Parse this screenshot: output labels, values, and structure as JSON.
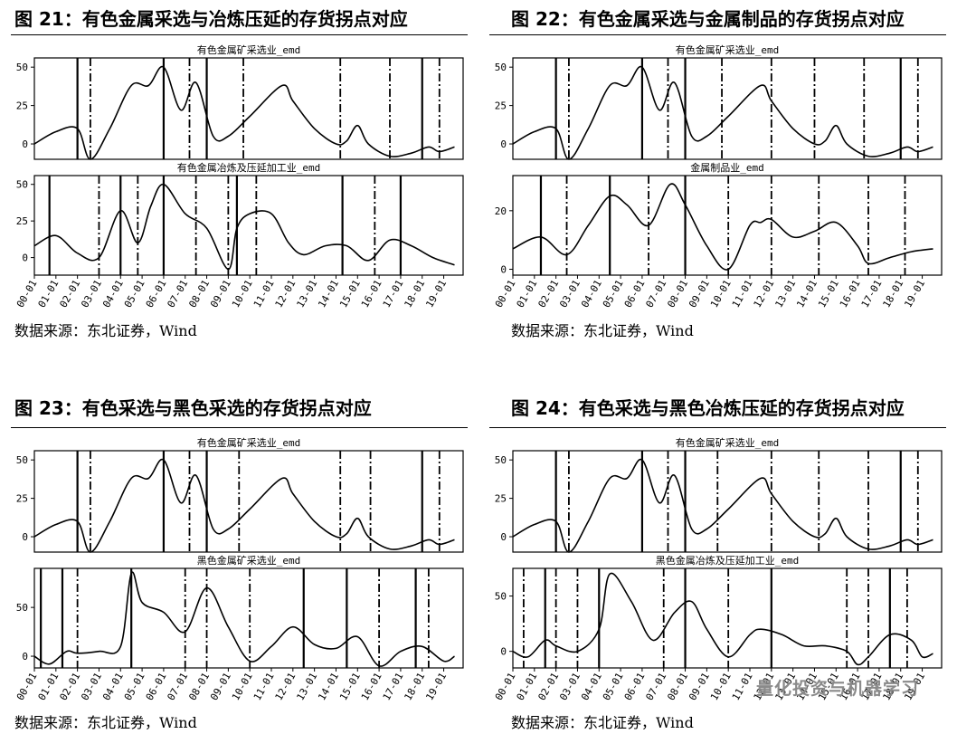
{
  "figures": [
    {
      "title": "图 21：有色金属采选与冶炼压延的存货拐点对应",
      "source": "数据来源：东北证券，Wind",
      "chart_data": [
        {
          "type": "line",
          "title": "有色金属矿采选业_emd",
          "ylim": [
            -10,
            56
          ],
          "yticks": [
            0,
            25,
            50
          ],
          "x": [
            2000.0,
            2001.0,
            2002.0,
            2002.6,
            2003.5,
            2004.5,
            2005.3,
            2006.0,
            2006.8,
            2007.5,
            2008.3,
            2009.0,
            2010.0,
            2011.5,
            2012.0,
            2013.0,
            2014.0,
            2014.5,
            2015.0,
            2015.5,
            2016.5,
            2017.5,
            2018.3,
            2018.8,
            2019.5
          ],
          "y": [
            0,
            8,
            10,
            -10,
            10,
            38,
            38,
            50,
            22,
            40,
            5,
            5,
            18,
            38,
            28,
            10,
            0,
            2,
            12,
            0,
            -8,
            -6,
            -2,
            -5,
            -2
          ],
          "events": [
            {
              "x": 2002.0,
              "style": "solid"
            },
            {
              "x": 2002.6,
              "style": "dashdot"
            },
            {
              "x": 2006.0,
              "style": "solid"
            },
            {
              "x": 2007.2,
              "style": "dashdot"
            },
            {
              "x": 2008.0,
              "style": "solid"
            },
            {
              "x": 2009.7,
              "style": "dashdot"
            },
            {
              "x": 2014.2,
              "style": "dashdot"
            },
            {
              "x": 2016.5,
              "style": "dashdot"
            },
            {
              "x": 2018.0,
              "style": "solid"
            },
            {
              "x": 2018.8,
              "style": "dashdot"
            }
          ]
        },
        {
          "type": "line",
          "title": "有色金属冶炼及压延加工业_emd",
          "ylim": [
            -12,
            56
          ],
          "yticks": [
            0,
            25,
            50
          ],
          "x": [
            2000.0,
            2001.0,
            2002.0,
            2003.0,
            2004.0,
            2004.8,
            2005.4,
            2006.0,
            2007.0,
            2008.0,
            2009.0,
            2009.4,
            2010.0,
            2011.0,
            2011.8,
            2012.5,
            2013.5,
            2014.5,
            2015.5,
            2016.5,
            2017.5,
            2018.5,
            2019.5
          ],
          "y": [
            8,
            15,
            3,
            0,
            32,
            10,
            35,
            50,
            30,
            20,
            -8,
            20,
            30,
            30,
            10,
            2,
            8,
            8,
            -2,
            12,
            8,
            0,
            -5
          ],
          "events": [
            {
              "x": 2000.7,
              "style": "solid"
            },
            {
              "x": 2003.0,
              "style": "dashdot"
            },
            {
              "x": 2004.0,
              "style": "solid"
            },
            {
              "x": 2004.8,
              "style": "dashdot"
            },
            {
              "x": 2006.0,
              "style": "solid"
            },
            {
              "x": 2007.5,
              "style": "dashdot"
            },
            {
              "x": 2009.0,
              "style": "dashdot"
            },
            {
              "x": 2009.4,
              "style": "solid"
            },
            {
              "x": 2010.3,
              "style": "dashdot"
            },
            {
              "x": 2014.3,
              "style": "solid"
            },
            {
              "x": 2015.8,
              "style": "dashdot"
            },
            {
              "x": 2017.0,
              "style": "solid"
            }
          ]
        }
      ],
      "xticks": [
        "00-01",
        "01-01",
        "02-01",
        "03-01",
        "04-01",
        "05-01",
        "06-01",
        "07-01",
        "08-01",
        "09-01",
        "10-01",
        "11-01",
        "12-01",
        "13-01",
        "14-01",
        "15-01",
        "16-01",
        "17-01",
        "18-01",
        "19-01"
      ]
    },
    {
      "title": "图 22：有色金属采选与金属制品的存货拐点对应",
      "source": "数据来源：东北证券，Wind",
      "chart_data": [
        {
          "type": "line",
          "title": "有色金属矿采选业_emd",
          "ylim": [
            -10,
            56
          ],
          "yticks": [
            0,
            25,
            50
          ],
          "x": [
            2000.0,
            2001.0,
            2002.0,
            2002.6,
            2003.5,
            2004.5,
            2005.3,
            2006.0,
            2006.8,
            2007.5,
            2008.3,
            2009.0,
            2010.0,
            2011.5,
            2012.0,
            2013.0,
            2014.0,
            2014.5,
            2015.0,
            2015.5,
            2016.5,
            2017.5,
            2018.3,
            2018.8,
            2019.5
          ],
          "y": [
            0,
            8,
            10,
            -10,
            10,
            38,
            38,
            50,
            22,
            40,
            5,
            5,
            18,
            38,
            28,
            10,
            0,
            2,
            12,
            0,
            -8,
            -6,
            -2,
            -5,
            -2
          ],
          "events": [
            {
              "x": 2002.0,
              "style": "solid"
            },
            {
              "x": 2002.6,
              "style": "dashdot"
            },
            {
              "x": 2006.0,
              "style": "solid"
            },
            {
              "x": 2007.2,
              "style": "dashdot"
            },
            {
              "x": 2008.0,
              "style": "solid"
            },
            {
              "x": 2009.7,
              "style": "dashdot"
            },
            {
              "x": 2012.0,
              "style": "dashdot"
            },
            {
              "x": 2014.0,
              "style": "dashdot"
            },
            {
              "x": 2016.3,
              "style": "dashdot"
            },
            {
              "x": 2018.0,
              "style": "solid"
            },
            {
              "x": 2018.8,
              "style": "dashdot"
            }
          ]
        },
        {
          "type": "line",
          "title": "金属制品业_emd",
          "ylim": [
            -2,
            32
          ],
          "yticks": [
            0,
            20
          ],
          "x": [
            2000.0,
            2001.3,
            2002.5,
            2003.5,
            2004.5,
            2005.3,
            2006.3,
            2007.3,
            2008.0,
            2009.0,
            2010.0,
            2011.0,
            2011.5,
            2012.0,
            2013.0,
            2014.0,
            2015.0,
            2016.0,
            2016.5,
            2017.5,
            2018.5,
            2019.5
          ],
          "y": [
            7,
            11,
            5,
            15,
            25,
            22,
            15,
            29,
            22,
            8,
            0,
            15,
            16,
            17,
            11,
            13,
            16,
            8,
            2,
            4,
            6,
            7
          ],
          "events": [
            {
              "x": 2001.3,
              "style": "solid"
            },
            {
              "x": 2002.5,
              "style": "dashdot"
            },
            {
              "x": 2004.5,
              "style": "solid"
            },
            {
              "x": 2006.3,
              "style": "dashdot"
            },
            {
              "x": 2008.0,
              "style": "solid"
            },
            {
              "x": 2010.0,
              "style": "dashdot"
            },
            {
              "x": 2012.0,
              "style": "dashdot"
            },
            {
              "x": 2014.2,
              "style": "dashdot"
            },
            {
              "x": 2016.5,
              "style": "dashdot"
            },
            {
              "x": 2018.2,
              "style": "dashdot"
            }
          ]
        }
      ],
      "xticks": [
        "00-01",
        "01-01",
        "02-01",
        "03-01",
        "04-01",
        "05-01",
        "06-01",
        "07-01",
        "08-01",
        "09-01",
        "10-01",
        "11-01",
        "12-01",
        "13-01",
        "14-01",
        "15-01",
        "16-01",
        "17-01",
        "18-01",
        "19-01"
      ]
    },
    {
      "title": "图 23：有色采选与黑色采选的存货拐点对应",
      "source": "数据来源：东北证券，Wind",
      "chart_data": [
        {
          "type": "line",
          "title": "有色金属矿采选业_emd",
          "ylim": [
            -10,
            56
          ],
          "yticks": [
            0,
            25,
            50
          ],
          "x": [
            2000.0,
            2001.0,
            2002.0,
            2002.6,
            2003.5,
            2004.5,
            2005.3,
            2006.0,
            2006.8,
            2007.5,
            2008.3,
            2009.0,
            2010.0,
            2011.5,
            2012.0,
            2013.0,
            2014.0,
            2014.5,
            2015.0,
            2015.5,
            2016.5,
            2017.5,
            2018.3,
            2018.8,
            2019.5
          ],
          "y": [
            0,
            8,
            10,
            -10,
            10,
            38,
            38,
            50,
            22,
            40,
            5,
            5,
            18,
            38,
            28,
            10,
            0,
            2,
            12,
            0,
            -8,
            -6,
            -2,
            -5,
            -2
          ],
          "events": [
            {
              "x": 2002.0,
              "style": "solid"
            },
            {
              "x": 2002.6,
              "style": "dashdot"
            },
            {
              "x": 2006.0,
              "style": "solid"
            },
            {
              "x": 2007.2,
              "style": "dashdot"
            },
            {
              "x": 2008.0,
              "style": "solid"
            },
            {
              "x": 2009.5,
              "style": "dashdot"
            },
            {
              "x": 2014.2,
              "style": "dashdot"
            },
            {
              "x": 2015.6,
              "style": "dashdot"
            },
            {
              "x": 2018.0,
              "style": "solid"
            },
            {
              "x": 2018.8,
              "style": "dashdot"
            }
          ]
        },
        {
          "type": "line",
          "title": "黑色金属矿采选业_emd",
          "ylim": [
            -12,
            90
          ],
          "yticks": [
            0,
            50
          ],
          "x": [
            2000.0,
            2000.7,
            2001.5,
            2002.0,
            2003.0,
            2004.0,
            2004.5,
            2005.0,
            2006.0,
            2007.0,
            2008.0,
            2009.0,
            2010.0,
            2011.0,
            2012.0,
            2013.0,
            2014.0,
            2015.0,
            2016.0,
            2017.0,
            2018.0,
            2019.0,
            2019.5
          ],
          "y": [
            0,
            -8,
            5,
            3,
            5,
            10,
            85,
            55,
            45,
            25,
            70,
            30,
            -5,
            10,
            30,
            12,
            8,
            20,
            -10,
            5,
            10,
            -5,
            0
          ],
          "events": [
            {
              "x": 2000.3,
              "style": "solid"
            },
            {
              "x": 2001.3,
              "style": "solid"
            },
            {
              "x": 2002.0,
              "style": "dashdot"
            },
            {
              "x": 2004.5,
              "style": "solid"
            },
            {
              "x": 2007.0,
              "style": "dashdot"
            },
            {
              "x": 2008.0,
              "style": "dashdot"
            },
            {
              "x": 2010.0,
              "style": "dashdot"
            },
            {
              "x": 2012.5,
              "style": "solid"
            },
            {
              "x": 2014.5,
              "style": "solid"
            },
            {
              "x": 2016.0,
              "style": "dashdot"
            },
            {
              "x": 2017.7,
              "style": "solid"
            },
            {
              "x": 2018.3,
              "style": "dashdot"
            }
          ]
        }
      ],
      "xticks": [
        "00-01",
        "01-01",
        "02-01",
        "03-01",
        "04-01",
        "05-01",
        "06-01",
        "07-01",
        "08-01",
        "09-01",
        "10-01",
        "11-01",
        "12-01",
        "13-01",
        "14-01",
        "15-01",
        "16-01",
        "17-01",
        "18-01",
        "19-01"
      ]
    },
    {
      "title": "图 24：有色采选与黑色冶炼压延的存货拐点对应",
      "source": "数据来源：东北证券，Wind",
      "watermark": "量化投资与机器学习",
      "chart_data": [
        {
          "type": "line",
          "title": "有色金属矿采选业_emd",
          "ylim": [
            -10,
            56
          ],
          "yticks": [
            0,
            25,
            50
          ],
          "x": [
            2000.0,
            2001.0,
            2002.0,
            2002.6,
            2003.5,
            2004.5,
            2005.3,
            2006.0,
            2006.8,
            2007.5,
            2008.3,
            2009.0,
            2010.0,
            2011.5,
            2012.0,
            2013.0,
            2014.0,
            2014.5,
            2015.0,
            2015.5,
            2016.5,
            2017.5,
            2018.3,
            2018.8,
            2019.5
          ],
          "y": [
            0,
            8,
            10,
            -10,
            10,
            38,
            38,
            50,
            22,
            40,
            5,
            5,
            18,
            38,
            28,
            10,
            0,
            2,
            12,
            0,
            -8,
            -6,
            -2,
            -5,
            -2
          ],
          "events": [
            {
              "x": 2002.0,
              "style": "solid"
            },
            {
              "x": 2002.6,
              "style": "dashdot"
            },
            {
              "x": 2006.0,
              "style": "solid"
            },
            {
              "x": 2007.2,
              "style": "dashdot"
            },
            {
              "x": 2008.0,
              "style": "solid"
            },
            {
              "x": 2009.5,
              "style": "dashdot"
            },
            {
              "x": 2012.0,
              "style": "dashdot"
            },
            {
              "x": 2014.2,
              "style": "dashdot"
            },
            {
              "x": 2016.5,
              "style": "dashdot"
            },
            {
              "x": 2018.0,
              "style": "solid"
            },
            {
              "x": 2018.8,
              "style": "dashdot"
            }
          ]
        },
        {
          "type": "line",
          "title": "黑色金属冶炼及压延加工业_emd",
          "ylim": [
            -15,
            75
          ],
          "yticks": [
            0,
            50
          ],
          "x": [
            2000.0,
            2000.7,
            2001.5,
            2002.0,
            2003.0,
            2004.0,
            2004.5,
            2005.5,
            2006.5,
            2007.5,
            2008.3,
            2009.0,
            2010.0,
            2011.0,
            2011.5,
            2012.5,
            2013.5,
            2014.5,
            2015.5,
            2016.0,
            2016.5,
            2017.5,
            2018.5,
            2019.0,
            2019.5
          ],
          "y": [
            0,
            -5,
            10,
            5,
            0,
            20,
            70,
            45,
            10,
            35,
            45,
            20,
            -5,
            15,
            20,
            15,
            5,
            5,
            0,
            -12,
            -5,
            15,
            10,
            -5,
            -2
          ],
          "events": [
            {
              "x": 2000.5,
              "style": "dashdot"
            },
            {
              "x": 2001.5,
              "style": "solid"
            },
            {
              "x": 2002.0,
              "style": "dashdot"
            },
            {
              "x": 2003.0,
              "style": "dashdot"
            },
            {
              "x": 2004.0,
              "style": "solid"
            },
            {
              "x": 2007.0,
              "style": "dashdot"
            },
            {
              "x": 2008.0,
              "style": "solid"
            },
            {
              "x": 2010.0,
              "style": "dashdot"
            },
            {
              "x": 2012.0,
              "style": "solid"
            },
            {
              "x": 2015.5,
              "style": "dashdot"
            },
            {
              "x": 2016.5,
              "style": "dashdot"
            },
            {
              "x": 2017.5,
              "style": "solid"
            },
            {
              "x": 2018.3,
              "style": "dashdot"
            }
          ]
        }
      ],
      "xticks": [
        "00-01",
        "01-01",
        "02-01",
        "03-01",
        "04-01",
        "05-01",
        "06-01",
        "07-01",
        "08-01",
        "09-01",
        "10-01",
        "11-01",
        "12-01",
        "13-01",
        "14-01",
        "15-01",
        "16-01",
        "17-01",
        "18-01",
        "19-01"
      ]
    }
  ]
}
